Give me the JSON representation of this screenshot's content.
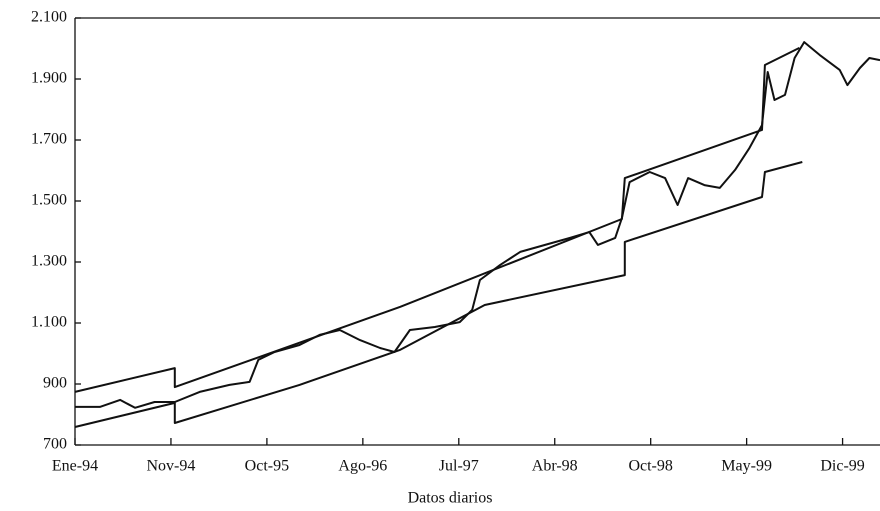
{
  "chart_data": {
    "type": "line",
    "xlabel": "Datos diarios",
    "xlim": [
      0,
      8.39
    ],
    "xticks": [
      {
        "value": 0,
        "label": "Ene-94"
      },
      {
        "value": 1,
        "label": "Nov-94"
      },
      {
        "value": 2,
        "label": "Oct-95"
      },
      {
        "value": 3,
        "label": "Ago-96"
      },
      {
        "value": 4,
        "label": "Jul-97"
      },
      {
        "value": 5,
        "label": "Abr-98"
      },
      {
        "value": 6,
        "label": "Oct-98"
      },
      {
        "value": 7,
        "label": "May-99"
      },
      {
        "value": 8,
        "label": "Dic-99"
      }
    ],
    "ylim": [
      700,
      2100
    ],
    "yticks": [
      {
        "value": 700,
        "label": "700"
      },
      {
        "value": 900,
        "label": "900"
      },
      {
        "value": 1100,
        "label": "1.100"
      },
      {
        "value": 1300,
        "label": "1.300"
      },
      {
        "value": 1500,
        "label": "1.500"
      },
      {
        "value": 1700,
        "label": "1.700"
      },
      {
        "value": 1900,
        "label": "1.900"
      },
      {
        "value": 2100,
        "label": "2.100"
      }
    ],
    "series": [
      {
        "color": "#111111",
        "x": [
          0,
          0.26,
          0.47,
          0.625,
          0.83,
          1.04,
          1.3,
          1.61,
          1.82,
          1.91,
          2.08,
          2.34,
          2.55,
          2.76,
          2.97,
          3.18,
          3.33,
          3.49,
          3.75,
          4.01,
          4.14,
          4.22,
          4.43,
          4.64,
          4.9,
          5.16,
          5.36,
          5.45,
          5.63,
          5.7,
          5.78,
          5.99,
          6.15,
          6.28,
          6.39,
          6.56,
          6.72,
          6.88,
          7.03,
          7.16,
          7.22,
          7.29,
          7.4,
          7.5,
          7.6,
          7.76,
          7.97,
          8.05,
          8.18,
          8.28,
          8.39
        ],
        "values": [
          825,
          825,
          848,
          822,
          841,
          841,
          874,
          897,
          907,
          979,
          1005,
          1028,
          1061,
          1077,
          1044,
          1018,
          1005,
          1077,
          1087,
          1103,
          1143,
          1241,
          1290,
          1333,
          1356,
          1379,
          1398,
          1356,
          1379,
          1444,
          1562,
          1595,
          1575,
          1487,
          1575,
          1552,
          1543,
          1602,
          1674,
          1749,
          1923,
          1831,
          1848,
          1969,
          2021,
          1979,
          1930,
          1880,
          1936,
          1969,
          1962
        ]
      },
      {
        "color": "#111111",
        "x": [
          0,
          1.04,
          1.04,
          3.39,
          5.7,
          5.73,
          7.16,
          7.19,
          7.55
        ],
        "values": [
          874,
          952,
          890,
          1153,
          1441,
          1575,
          1733,
          1946,
          2002
        ]
      },
      {
        "color": "#111111",
        "x": [
          0,
          1.04,
          1.04,
          2.34,
          3.39,
          4.27,
          5.73,
          5.73,
          7.16,
          7.19,
          7.58
        ],
        "values": [
          759,
          838,
          772,
          897,
          1012,
          1159,
          1257,
          1366,
          1513,
          1595,
          1628
        ]
      }
    ]
  }
}
